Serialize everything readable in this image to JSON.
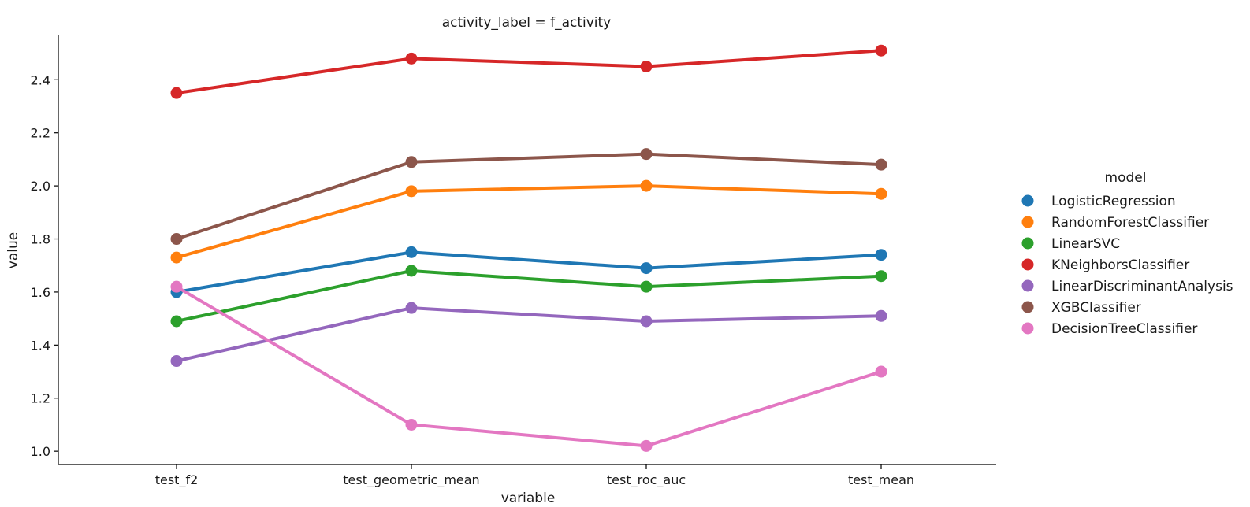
{
  "chart_data": {
    "type": "line",
    "title": "activity_label = f_activity",
    "xlabel": "variable",
    "ylabel": "value",
    "categories": [
      "test_f2",
      "test_geometric_mean",
      "test_roc_auc",
      "test_mean"
    ],
    "ylim": [
      0.95,
      2.57
    ],
    "yticks": [
      "1.0",
      "1.2",
      "1.4",
      "1.6",
      "1.8",
      "2.0",
      "2.2",
      "2.4"
    ],
    "grid": false,
    "legend": {
      "title": "model",
      "placement": "right"
    },
    "series": [
      {
        "name": "LogisticRegression",
        "color": "#1f77b4",
        "values": [
          1.6,
          1.75,
          1.69,
          1.74
        ]
      },
      {
        "name": "RandomForestClassifier",
        "color": "#ff7f0e",
        "values": [
          1.73,
          1.98,
          2.0,
          1.97
        ]
      },
      {
        "name": "LinearSVC",
        "color": "#2ca02c",
        "values": [
          1.49,
          1.68,
          1.62,
          1.66
        ]
      },
      {
        "name": "KNeighborsClassifier",
        "color": "#d62728",
        "values": [
          2.35,
          2.48,
          2.45,
          2.51
        ]
      },
      {
        "name": "LinearDiscriminantAnalysis",
        "color": "#9467bd",
        "values": [
          1.34,
          1.54,
          1.49,
          1.51
        ]
      },
      {
        "name": "XGBClassifier",
        "color": "#8c564b",
        "values": [
          1.8,
          2.09,
          2.12,
          2.08
        ]
      },
      {
        "name": "DecisionTreeClassifier",
        "color": "#e377c2",
        "values": [
          1.62,
          1.1,
          1.02,
          1.3
        ]
      }
    ]
  }
}
